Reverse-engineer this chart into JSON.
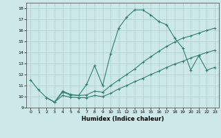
{
  "xlabel": "Humidex (Indice chaleur)",
  "bg_color": "#cce8e8",
  "grid_color": "#aacccc",
  "line_color": "#2e7d6e",
  "xlim": [
    -0.5,
    23.5
  ],
  "ylim": [
    9,
    18.5
  ],
  "xticks": [
    0,
    1,
    2,
    3,
    4,
    5,
    6,
    7,
    8,
    9,
    10,
    11,
    12,
    13,
    14,
    15,
    16,
    17,
    18,
    19,
    20,
    21,
    22,
    23
  ],
  "yticks": [
    9,
    10,
    11,
    12,
    13,
    14,
    15,
    16,
    17,
    18
  ],
  "line1_x": [
    0,
    1,
    2,
    3,
    4,
    5,
    6,
    7,
    8,
    9,
    10,
    11,
    12,
    13,
    14,
    15,
    16,
    17,
    18,
    19,
    20,
    21,
    22,
    23
  ],
  "line1_y": [
    11.5,
    10.6,
    9.9,
    9.5,
    10.5,
    10.2,
    10.1,
    11.1,
    12.8,
    11.0,
    13.9,
    16.2,
    17.2,
    17.85,
    17.85,
    17.4,
    16.8,
    16.5,
    15.3,
    14.4,
    12.4,
    13.7,
    12.4,
    12.65
  ],
  "line2_x": [
    2,
    3,
    4,
    5,
    6,
    7,
    8,
    9,
    10,
    11,
    12,
    13,
    14,
    15,
    16,
    17,
    18,
    19,
    20,
    21,
    22,
    23
  ],
  "line2_y": [
    9.9,
    9.5,
    10.4,
    10.15,
    10.1,
    10.15,
    10.5,
    10.4,
    11.0,
    11.5,
    12.0,
    12.5,
    13.1,
    13.6,
    14.1,
    14.55,
    14.95,
    15.3,
    15.5,
    15.75,
    16.0,
    16.2
  ],
  "line3_x": [
    2,
    3,
    4,
    5,
    6,
    7,
    8,
    9,
    10,
    11,
    12,
    13,
    14,
    15,
    16,
    17,
    18,
    19,
    20,
    21,
    22,
    23
  ],
  "line3_y": [
    9.9,
    9.5,
    10.1,
    9.95,
    9.9,
    9.9,
    10.1,
    10.0,
    10.3,
    10.7,
    11.0,
    11.35,
    11.65,
    12.0,
    12.3,
    12.65,
    12.95,
    13.2,
    13.5,
    13.75,
    14.0,
    14.2
  ]
}
